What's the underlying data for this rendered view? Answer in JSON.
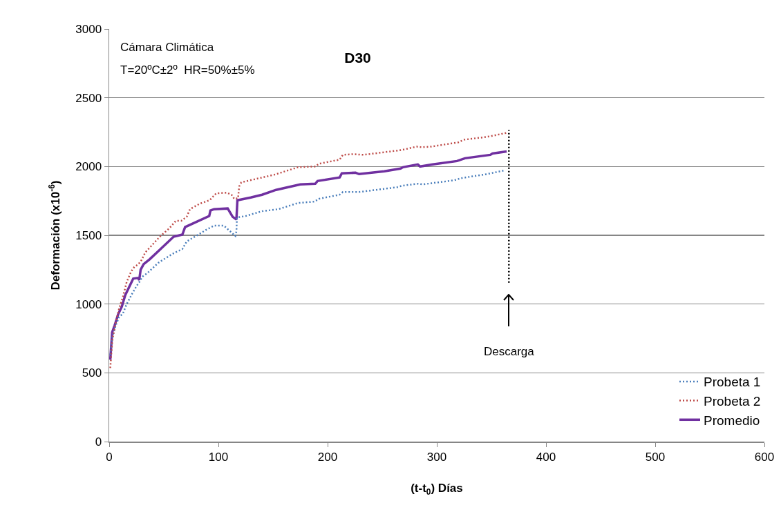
{
  "chart_data": {
    "type": "line",
    "title": "D30",
    "xlabel": "(t-t$_{0}$) Días",
    "ylabel": "Deformación (x10$^{-6}$)",
    "xlim": [
      0,
      600
    ],
    "xticks": [
      0,
      100,
      200,
      300,
      400,
      500,
      600
    ],
    "ylim": [
      0,
      3000
    ],
    "yticks": [
      0,
      500,
      1000,
      1500,
      2000,
      2500,
      3000
    ],
    "grid": "y",
    "legend": "bottom right",
    "annotations": [
      "Cámara Climática",
      "T=20ºC±2º  HR=50%±5%",
      "Descarga"
    ],
    "series": [
      {
        "name": "Probeta 1",
        "color": "#4a7ebb",
        "line_style": "dotted",
        "x": [
          1,
          3,
          6,
          9,
          12.5,
          16,
          21,
          25,
          28,
          30.5,
          35,
          45,
          58,
          67,
          71,
          90,
          96,
          105,
          112,
          115.5,
          116.5,
          117,
          125,
          140,
          155,
          173,
          188,
          192,
          211,
          214,
          229,
          264,
          268,
          283,
          287,
          316,
          322,
          346,
          361
        ],
        "values": [
          630,
          765,
          845,
          905,
          930,
          1000,
          1075,
          1130,
          1165,
          1200,
          1225,
          1300,
          1365,
          1400,
          1455,
          1545,
          1570,
          1570,
          1520,
          1495,
          1530,
          1630,
          1640,
          1675,
          1690,
          1735,
          1745,
          1765,
          1795,
          1815,
          1815,
          1850,
          1860,
          1875,
          1870,
          1900,
          1915,
          1945,
          1970
        ]
      },
      {
        "name": "Probeta 2",
        "color": "#be4b48",
        "line_style": "dotted",
        "x": [
          1,
          2,
          3,
          6,
          9,
          12.5,
          16,
          20,
          23,
          26,
          29,
          33,
          40,
          47,
          55,
          61,
          66,
          71,
          74,
          83,
          92,
          98,
          107.5,
          112,
          114.5,
          118,
          119,
          121,
          140,
          151,
          163,
          173,
          189,
          192,
          211,
          214,
          223.5,
          233,
          268,
          281.5,
          286,
          295,
          319.5,
          325,
          345,
          349,
          364
        ],
        "values": [
          535,
          645,
          745,
          865,
          965,
          1050,
          1160,
          1235,
          1270,
          1285,
          1310,
          1375,
          1435,
          1495,
          1550,
          1605,
          1605,
          1635,
          1690,
          1730,
          1755,
          1805,
          1810,
          1795,
          1765,
          1770,
          1855,
          1885,
          1920,
          1940,
          1970,
          1995,
          2000,
          2020,
          2050,
          2085,
          2090,
          2085,
          2120,
          2145,
          2140,
          2145,
          2175,
          2195,
          2215,
          2220,
          2245
        ]
      },
      {
        "name": "Promedio",
        "color": "#7030a0",
        "line_style": "solid",
        "x": [
          1,
          2.7,
          5,
          8.4,
          11.5,
          14.7,
          22,
          26.3,
          27.5,
          28.8,
          31.5,
          37,
          47,
          59,
          67,
          69.5,
          91.6,
          92.7,
          96,
          108.5,
          113,
          116.5,
          117.4,
          129.6,
          140,
          152.8,
          175,
          188.7,
          190.8,
          211,
          213,
          225.6,
          228.8,
          252,
          266.8,
          269,
          282.6,
          284.7,
          296.3,
          318.5,
          325.8,
          349,
          351,
          364
        ],
        "values": [
          595,
          795,
          845,
          930,
          980,
          1065,
          1185,
          1190,
          1175,
          1250,
          1290,
          1325,
          1400,
          1490,
          1505,
          1560,
          1640,
          1680,
          1690,
          1695,
          1635,
          1615,
          1755,
          1775,
          1795,
          1830,
          1870,
          1875,
          1895,
          1920,
          1950,
          1955,
          1945,
          1965,
          1985,
          1995,
          2015,
          2000,
          2015,
          2040,
          2060,
          2085,
          2095,
          2110
        ]
      },
      {
        "color": "#000000",
        "line_style": "dotted",
        "x": [
          366,
          366
        ],
        "values": [
          1155,
          2265
        ]
      }
    ]
  }
}
